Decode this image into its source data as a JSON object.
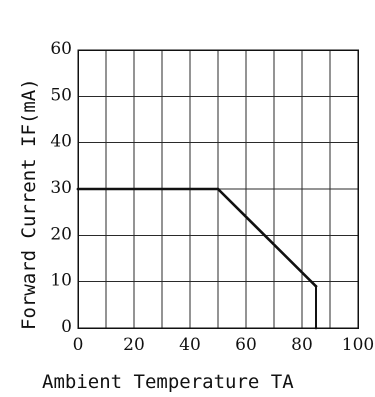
{
  "chart_data": {
    "type": "line",
    "title": "",
    "xlabel": "Ambient Temperature TA",
    "ylabel": "Forward Current IF(mA)",
    "xlim": [
      0,
      100
    ],
    "ylim": [
      0,
      60
    ],
    "x_ticks": [
      0,
      10,
      20,
      30,
      40,
      50,
      60,
      70,
      80,
      90,
      100
    ],
    "x_tick_labels": [
      "0",
      "",
      "20",
      "",
      "40",
      "",
      "60",
      "",
      "80",
      "",
      "100"
    ],
    "y_ticks": [
      0,
      10,
      20,
      30,
      40,
      50,
      60
    ],
    "y_tick_labels": [
      "0",
      "10",
      "20",
      "30",
      "40",
      "50",
      "60"
    ],
    "grid": true,
    "line_color": "#111111",
    "series": [
      {
        "x": [
          0,
          50,
          85,
          85
        ],
        "y": [
          30,
          30,
          9,
          0
        ]
      }
    ]
  }
}
